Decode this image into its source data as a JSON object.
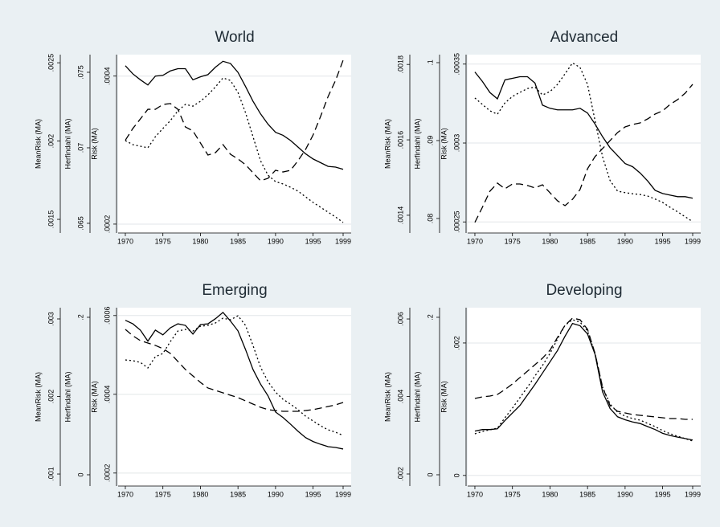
{
  "chart_data": [
    {
      "type": "line",
      "title": "World",
      "x": [
        1970,
        1971,
        1972,
        1973,
        1974,
        1975,
        1976,
        1977,
        1978,
        1979,
        1980,
        1981,
        1982,
        1983,
        1984,
        1985,
        1986,
        1987,
        1988,
        1989,
        1990,
        1991,
        1992,
        1993,
        1994,
        1995,
        1996,
        1997,
        1998,
        1999
      ],
      "xlim": [
        1969.04,
        2000.07
      ],
      "xticks": [
        1970,
        1975,
        1980,
        1985,
        1990,
        1995,
        1999
      ],
      "ylabel": "MeanRisk (MA)",
      "ylim": [
        0.001413,
        0.002552
      ],
      "yticks": [
        {
          "value": 0.0015,
          "label": ".0015"
        },
        {
          "value": 0.002,
          "label": ".002"
        },
        {
          "value": 0.0025,
          "label": ".0025"
        }
      ],
      "y2label": "Herfindahl (MA)",
      "y2lim": [
        0.06436,
        0.07617
      ],
      "y2ticks": [
        {
          "value": 0.065,
          "label": ".065"
        },
        {
          "value": 0.07,
          "label": ".07"
        },
        {
          "value": 0.075,
          "label": ".075"
        }
      ],
      "y3label": "Risk (MA)",
      "y3lim": [
        0.000188,
        0.000429
      ],
      "y3ticks": [
        {
          "value": 0.0002,
          "label": ".0002"
        },
        {
          "value": 0.0004,
          "label": ".0004"
        }
      ],
      "grid": "y3",
      "series": [
        {
          "axis": "y3",
          "color": "#000000",
          "dash": "solid",
          "values": [
            0.000414,
            0.000403,
            0.000395,
            0.000388,
            0.0004,
            0.000401,
            0.000407,
            0.00041,
            0.00041,
            0.000395,
            0.000399,
            0.000402,
            0.000412,
            0.00042,
            0.000417,
            0.000405,
            0.000386,
            0.000366,
            0.000349,
            0.000335,
            0.000324,
            0.00032,
            0.000313,
            0.000304,
            0.000295,
            0.000288,
            0.000283,
            0.000278,
            0.000277,
            0.000274
          ]
        },
        {
          "axis": "y2",
          "color": "#000000",
          "dash": "dashed",
          "values": [
            0.0705,
            0.07128,
            0.07191,
            0.07255,
            0.07255,
            0.07287,
            0.07293,
            0.07255,
            0.07138,
            0.07112,
            0.07032,
            0.06952,
            0.06968,
            0.07021,
            0.06957,
            0.06926,
            0.06888,
            0.06835,
            0.06782,
            0.06798,
            0.06851,
            0.0684,
            0.06851,
            0.06915,
            0.06989,
            0.07085,
            0.07208,
            0.0734,
            0.07447,
            0.0758
          ]
        },
        {
          "axis": "y",
          "color": "#000000",
          "dash": "dotted",
          "values": [
            0.002003,
            0.001977,
            0.001967,
            0.001957,
            0.002028,
            0.00208,
            0.002131,
            0.002193,
            0.002234,
            0.002223,
            0.002254,
            0.002295,
            0.002346,
            0.002403,
            0.002387,
            0.00231,
            0.002182,
            0.002028,
            0.001874,
            0.001782,
            0.001741,
            0.001726,
            0.001705,
            0.00168,
            0.001644,
            0.001608,
            0.001577,
            0.001546,
            0.001515,
            0.00148
          ]
        }
      ]
    },
    {
      "type": "line",
      "title": "Advanced",
      "x": [
        1970,
        1971,
        1972,
        1973,
        1974,
        1975,
        1976,
        1977,
        1978,
        1979,
        1980,
        1981,
        1982,
        1983,
        1984,
        1985,
        1986,
        1987,
        1988,
        1989,
        1990,
        1991,
        1992,
        1993,
        1994,
        1995,
        1996,
        1997,
        1998,
        1999
      ],
      "xlim": [
        1969.04,
        2000.07
      ],
      "xticks": [
        1970,
        1975,
        1980,
        1985,
        1990,
        1995,
        1999
      ],
      "ylabel": "MeanRisk (MA)",
      "ylim": [
        0.001353,
        0.001826
      ],
      "yticks": [
        {
          "value": 0.0014,
          "label": ".0014"
        },
        {
          "value": 0.0016,
          "label": ".0016"
        },
        {
          "value": 0.0018,
          "label": ".0018"
        }
      ],
      "y2label": "Herfindahl (MA)",
      "y2lim": [
        0.07814,
        0.10103
      ],
      "y2ticks": [
        {
          "value": 0.08,
          "label": ".08"
        },
        {
          "value": 0.09,
          "label": ".09"
        },
        {
          "value": 0.1,
          "label": ".1"
        }
      ],
      "y3label": "Risk (MA)",
      "y3lim": [
        0.000243,
        0.000356
      ],
      "y3ticks": [
        {
          "value": 0.00025,
          "label": ".00025"
        },
        {
          "value": 0.0003,
          "label": ".0003"
        },
        {
          "value": 0.00035,
          "label": ".00035"
        }
      ],
      "grid": "y3",
      "series": [
        {
          "axis": "y3",
          "color": "#000000",
          "dash": "solid",
          "values": [
            0.000345,
            0.000339,
            0.000332,
            0.000328,
            0.00034,
            0.000341,
            0.000342,
            0.000342,
            0.000338,
            0.000324,
            0.000322,
            0.000321,
            0.000321,
            0.000321,
            0.000322,
            0.000319,
            0.000312,
            0.000304,
            0.000297,
            0.000292,
            0.000287,
            0.000285,
            0.000281,
            0.000276,
            0.00027,
            0.000268,
            0.000267,
            0.000266,
            0.000266,
            0.000265
          ]
        },
        {
          "axis": "y2",
          "color": "#000000",
          "dash": "dashed",
          "values": [
            0.0795,
            0.08144,
            0.0835,
            0.08454,
            0.08381,
            0.08443,
            0.08443,
            0.08423,
            0.08392,
            0.08433,
            0.0833,
            0.08227,
            0.08165,
            0.08247,
            0.08371,
            0.08639,
            0.08794,
            0.08897,
            0.09,
            0.09103,
            0.09175,
            0.09206,
            0.09227,
            0.09278,
            0.0934,
            0.09382,
            0.09464,
            0.09526,
            0.09608,
            0.09722
          ]
        },
        {
          "axis": "y",
          "color": "#000000",
          "dash": "dotted",
          "values": [
            0.001711,
            0.001694,
            0.001677,
            0.001668,
            0.001698,
            0.001715,
            0.001726,
            0.001736,
            0.00174,
            0.001719,
            0.001728,
            0.001747,
            0.001775,
            0.001804,
            0.001792,
            0.001747,
            0.001651,
            0.001555,
            0.001492,
            0.001464,
            0.00146,
            0.001457,
            0.001455,
            0.001451,
            0.001443,
            0.001434,
            0.001421,
            0.001409,
            0.001396,
            0.001383
          ]
        }
      ]
    },
    {
      "type": "line",
      "title": "Emerging",
      "x": [
        1970,
        1971,
        1972,
        1973,
        1974,
        1975,
        1976,
        1977,
        1978,
        1979,
        1980,
        1981,
        1982,
        1983,
        1984,
        1985,
        1986,
        1987,
        1988,
        1989,
        1990,
        1991,
        1992,
        1993,
        1994,
        1995,
        1996,
        1997,
        1998,
        1999
      ],
      "xlim": [
        1969.04,
        2000.07
      ],
      "xticks": [
        1970,
        1975,
        1980,
        1985,
        1990,
        1995,
        1999
      ],
      "ylabel": "MeanRisk (MA)",
      "ylim": [
        0.000845,
        0.003145
      ],
      "yticks": [
        {
          "value": 0.001,
          "label": ".001"
        },
        {
          "value": 0.002,
          "label": ".002"
        },
        {
          "value": 0.003,
          "label": ".003"
        }
      ],
      "y2label": "Herfindahl (MA)",
      "y2lim": [
        -0.0143,
        0.2122
      ],
      "y2ticks": [
        0,
        {
          "value": 0.2,
          "label": ".2"
        }
      ],
      "y3label": "Risk (MA)",
      "y3lim": [
        0.000167,
        0.00062
      ],
      "y3ticks": [
        {
          "value": 0.0002,
          "label": ".0002"
        },
        {
          "value": 0.0004,
          "label": ".0004"
        },
        {
          "value": 0.0006,
          "label": ".0006"
        }
      ],
      "grid": "y3",
      "series": [
        {
          "axis": "y3",
          "color": "#000000",
          "dash": "solid",
          "values": [
            0.000588,
            0.000579,
            0.000563,
            0.000535,
            0.000563,
            0.000551,
            0.000569,
            0.000579,
            0.000575,
            0.000553,
            0.000577,
            0.000579,
            0.000592,
            0.000608,
            0.000586,
            0.000561,
            0.000514,
            0.000463,
            0.000426,
            0.000396,
            0.000355,
            0.000341,
            0.000324,
            0.000306,
            0.00029,
            0.00028,
            0.000273,
            0.000267,
            0.000265,
            0.000261
          ]
        },
        {
          "axis": "y2",
          "color": "#000000",
          "dash": "dashed",
          "values": [
            0.1847,
            0.1765,
            0.1704,
            0.1673,
            0.1643,
            0.1602,
            0.1541,
            0.1439,
            0.1337,
            0.1255,
            0.1173,
            0.1102,
            0.1071,
            0.1041,
            0.101,
            0.098,
            0.0939,
            0.0898,
            0.0857,
            0.0827,
            0.0816,
            0.0806,
            0.0806,
            0.0806,
            0.0816,
            0.0827,
            0.0847,
            0.0867,
            0.0888,
            0.0918
          ]
        },
        {
          "axis": "y",
          "color": "#000000",
          "dash": "dotted",
          "values": [
            0.002471,
            0.002461,
            0.00244,
            0.002368,
            0.002513,
            0.002554,
            0.002709,
            0.002844,
            0.002865,
            0.002844,
            0.002906,
            0.002917,
            0.002948,
            0.00301,
            0.002989,
            0.003041,
            0.002917,
            0.002658,
            0.002378,
            0.002191,
            0.002057,
            0.001963,
            0.001901,
            0.001829,
            0.001746,
            0.001684,
            0.001622,
            0.00157,
            0.001539,
            0.001497
          ]
        }
      ]
    },
    {
      "type": "line",
      "title": "Developing",
      "x": [
        1970,
        1971,
        1972,
        1973,
        1974,
        1975,
        1976,
        1977,
        1978,
        1979,
        1980,
        1981,
        1982,
        1983,
        1984,
        1985,
        1986,
        1987,
        1988,
        1989,
        1990,
        1991,
        1992,
        1993,
        1994,
        1995,
        1996,
        1997,
        1998,
        1999
      ],
      "xlim": [
        1969.04,
        2000.07
      ],
      "xticks": [
        1970,
        1975,
        1980,
        1985,
        1990,
        1995,
        1999
      ],
      "ylabel": "MeanRisk (MA)",
      "ylim": [
        0.001689,
        0.006291
      ],
      "yticks": [
        {
          "value": 0.002,
          "label": ".002"
        },
        {
          "value": 0.004,
          "label": ".004"
        },
        {
          "value": 0.006,
          "label": ".006"
        }
      ],
      "y2label": "Herfindahl (MA)",
      "y2lim": [
        -0.0143,
        0.2122
      ],
      "y2ticks": [
        0,
        {
          "value": 0.2,
          "label": ".2"
        }
      ],
      "y3label": "Risk (MA)",
      "y3lim": [
        -0.00016,
        0.002533
      ],
      "y3ticks": [
        0,
        {
          "value": 0.002,
          "label": ".002"
        }
      ],
      "grid": "y3",
      "series": [
        {
          "axis": "y3",
          "color": "#000000",
          "dash": "solid",
          "values": [
            0.00067,
            0.000693,
            0.000693,
            0.000704,
            0.000829,
            0.000943,
            0.001056,
            0.001216,
            0.001375,
            0.001545,
            0.001715,
            0.001886,
            0.002102,
            0.002295,
            0.002261,
            0.002136,
            0.001829,
            0.001261,
            0.001011,
            0.000886,
            0.000841,
            0.000807,
            0.000784,
            0.000738,
            0.000693,
            0.000636,
            0.000602,
            0.000579,
            0.000557,
            0.000534
          ]
        },
        {
          "axis": "y2",
          "color": "#000000",
          "dash": "dashed",
          "values": [
            0.0969,
            0.099,
            0.1,
            0.102,
            0.1082,
            0.1153,
            0.1235,
            0.1316,
            0.1398,
            0.148,
            0.1582,
            0.1745,
            0.1898,
            0.199,
            0.1969,
            0.1847,
            0.1541,
            0.1112,
            0.0878,
            0.0806,
            0.0786,
            0.0765,
            0.0755,
            0.0745,
            0.0735,
            0.0724,
            0.0714,
            0.0714,
            0.0704,
            0.0704
          ]
        },
        {
          "axis": "y",
          "color": "#000000",
          "dash": "dotted",
          "values": [
            0.003037,
            0.003099,
            0.00314,
            0.003182,
            0.003451,
            0.0037,
            0.003969,
            0.004239,
            0.004529,
            0.004799,
            0.00511,
            0.005483,
            0.005835,
            0.00598,
            0.005918,
            0.00569,
            0.00511,
            0.004239,
            0.003804,
            0.003596,
            0.003493,
            0.00343,
            0.003389,
            0.003306,
            0.003223,
            0.003119,
            0.003037,
            0.002974,
            0.002912,
            0.00285
          ]
        }
      ]
    }
  ]
}
